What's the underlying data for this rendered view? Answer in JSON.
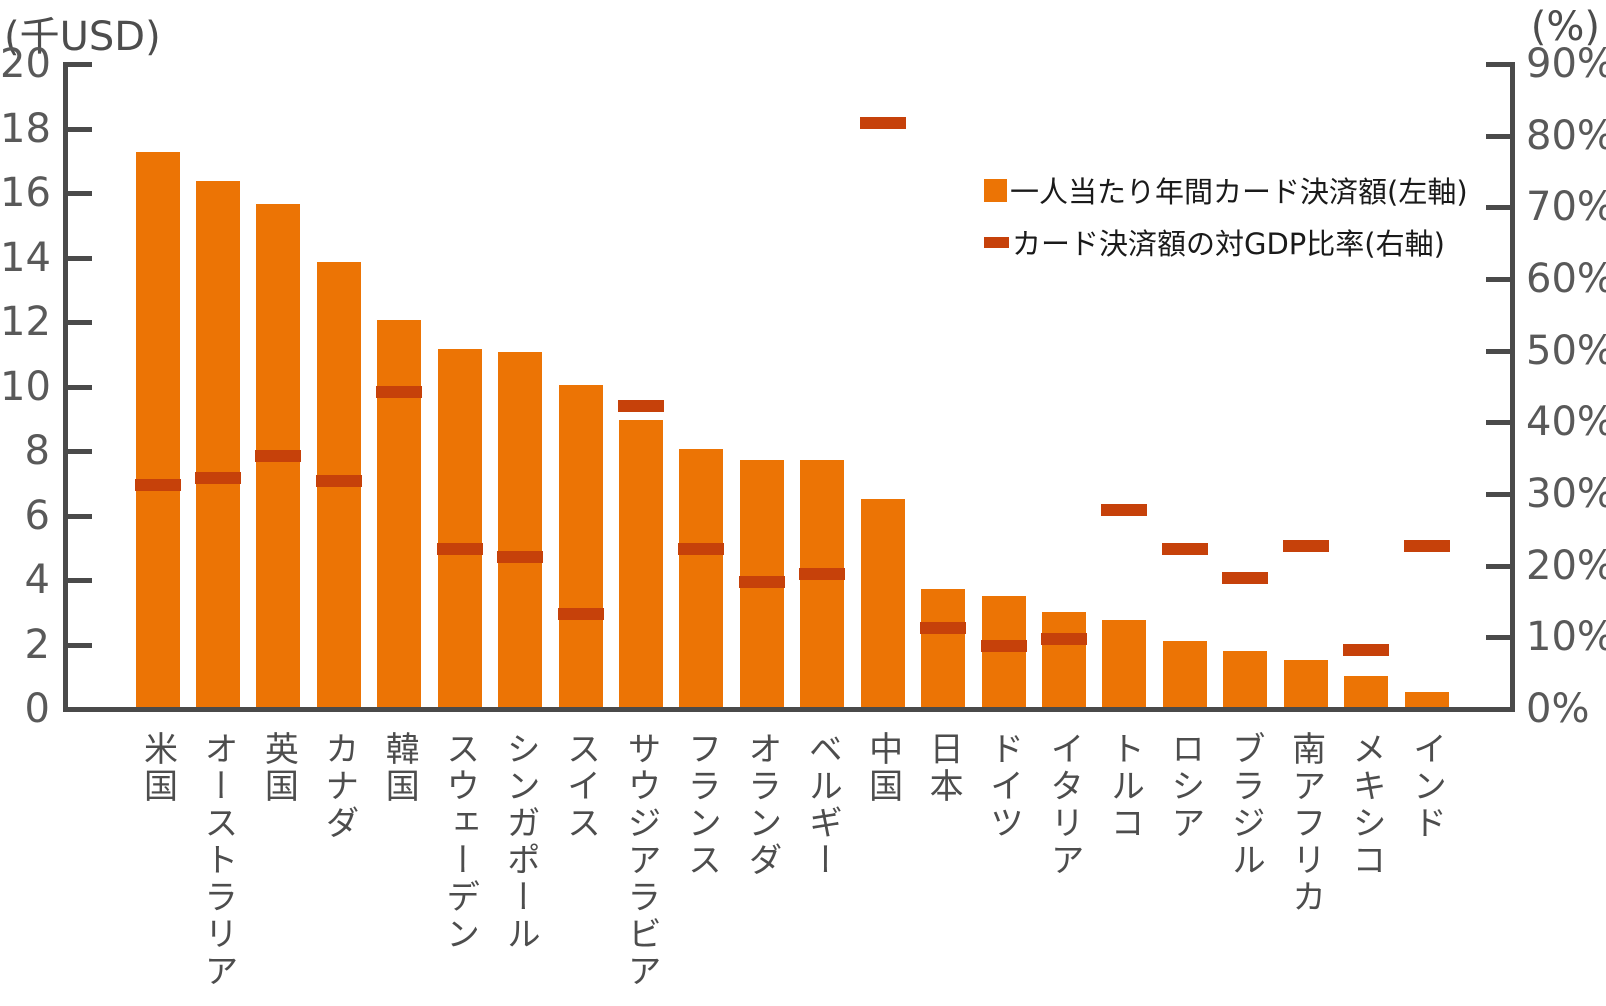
{
  "chart_data": {
    "type": "bar",
    "title": "",
    "grid": false,
    "legend_position": "inside-upper-right",
    "categories": [
      "米国",
      "オーストラリア",
      "英国",
      "カナダ",
      "韓国",
      "スウェーデン",
      "シンガポール",
      "スイス",
      "サウジアラビア",
      "フランス",
      "オランダ",
      "ベルギー",
      "中国",
      "日本",
      "ドイツ",
      "イタリア",
      "トルコ",
      "ロシア",
      "ブラジル",
      "南アフリカ",
      "メキシコ",
      "インド"
    ],
    "series": [
      {
        "name": "一人当たり年間カード決済額(左軸)",
        "type": "bar",
        "axis": "left",
        "unit": "千USD",
        "color": "#EC7405",
        "values": [
          17.2,
          16.3,
          15.6,
          13.8,
          12.0,
          11.1,
          11.0,
          10.0,
          8.9,
          8.0,
          7.65,
          7.65,
          6.45,
          3.65,
          3.45,
          2.95,
          2.7,
          2.05,
          1.75,
          1.45,
          0.95,
          0.45
        ]
      },
      {
        "name": "カード決済額の対GDP比率(右軸)",
        "type": "dash",
        "axis": "right",
        "unit": "%",
        "color": "#C6410A",
        "values": [
          31,
          32,
          35,
          31.5,
          44,
          22,
          21,
          13,
          42,
          22,
          17.5,
          18.5,
          81.5,
          11,
          8.5,
          9.5,
          27.5,
          22,
          18,
          22.5,
          8,
          22.5
        ]
      }
    ],
    "left_axis": {
      "caption": "(千USD)",
      "min": 0,
      "max": 20,
      "step": 2,
      "ticks": [
        "20",
        "18",
        "16",
        "14",
        "12",
        "10",
        "8",
        "6",
        "4",
        "2",
        "0"
      ]
    },
    "right_axis": {
      "caption": "(%)",
      "min": 0,
      "max": 90,
      "step": 10,
      "ticks": [
        "90%",
        "80%",
        "70%",
        "60%",
        "50%",
        "40%",
        "30%",
        "20%",
        "10%",
        "0%"
      ]
    }
  },
  "legend": {
    "bar_label": "一人当たり年間カード決済額(左軸)",
    "dash_label": "カード決済額の対GDP比率(右軸)"
  },
  "colors": {
    "bar": "#EC7405",
    "dash": "#C6410A",
    "axis": "#4A4A4A",
    "tick_text": "#595959",
    "category_text": "#4D4D4D",
    "legend_text": "#1A1A1A",
    "background": "#FFFFFF"
  }
}
